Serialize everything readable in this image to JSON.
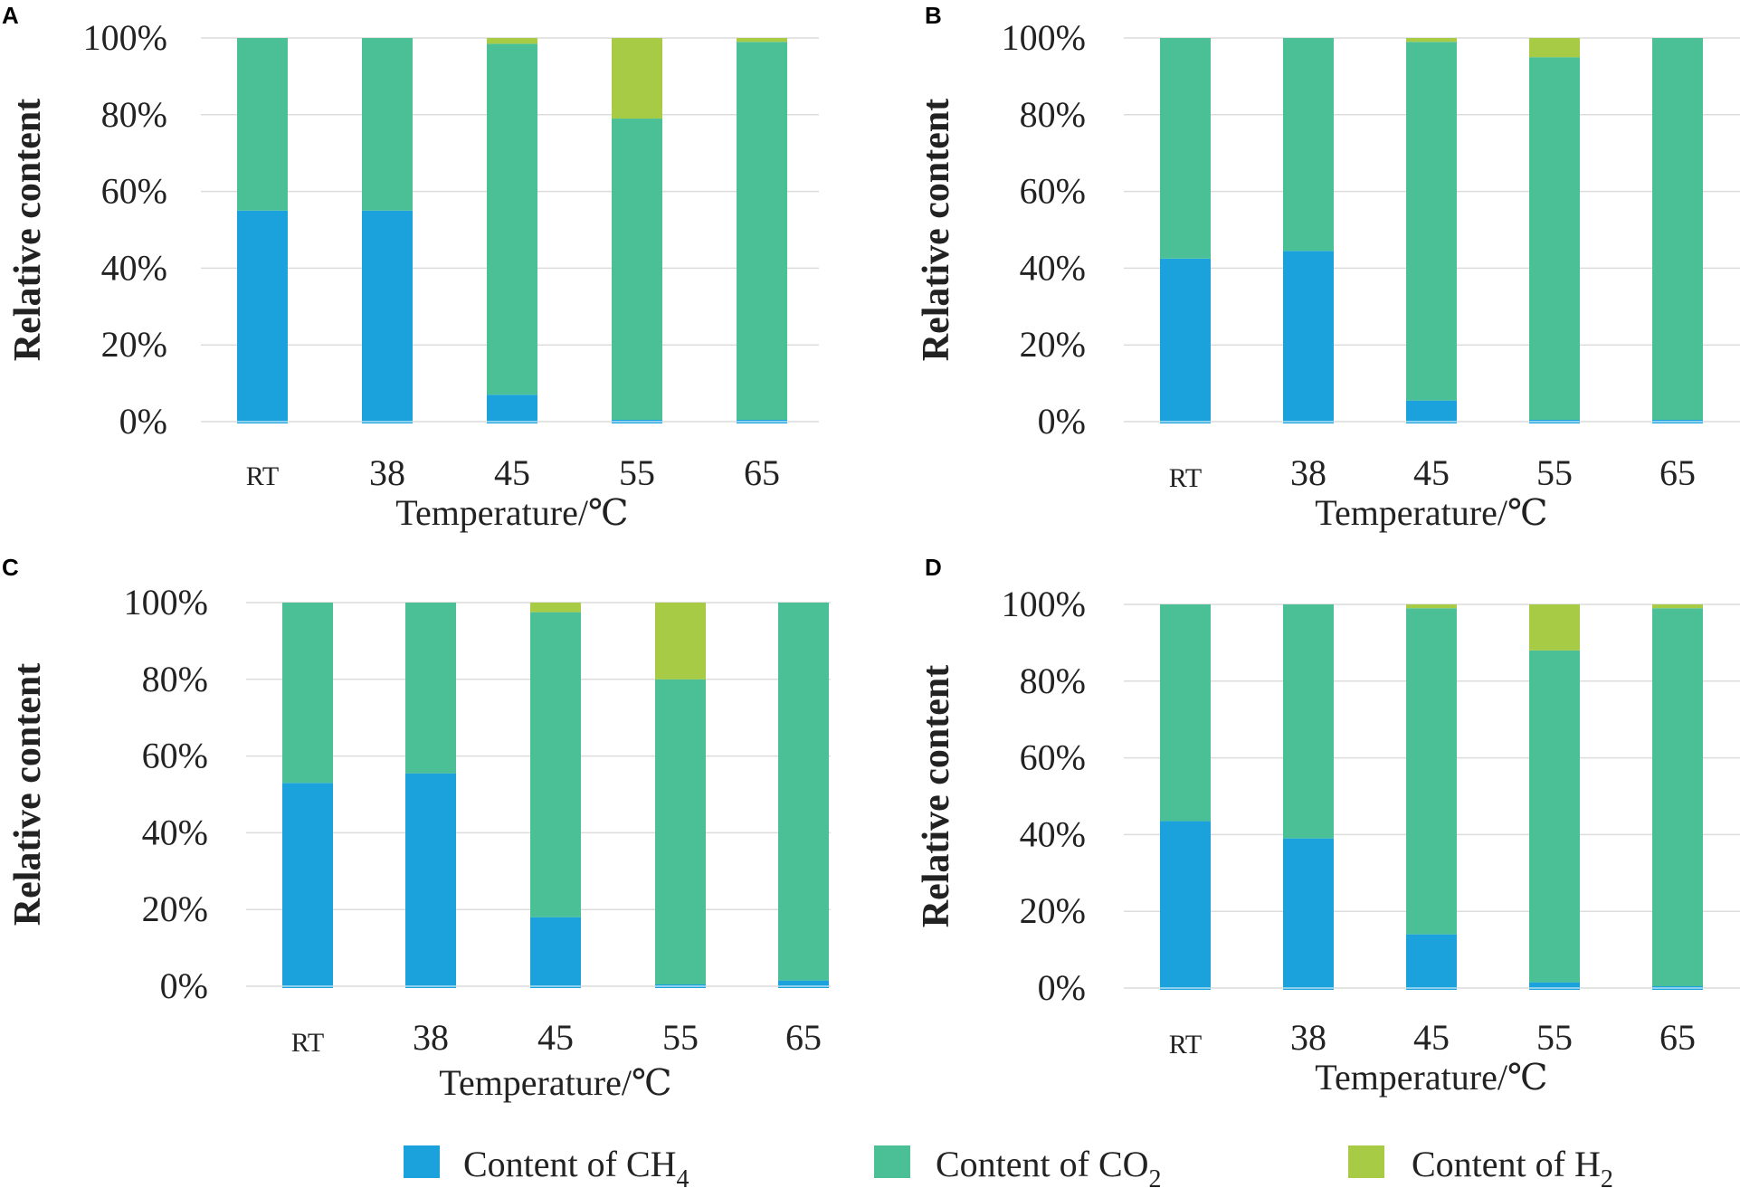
{
  "colors": {
    "ch4": "#1ba1dc",
    "co2": "#4bbf96",
    "h2": "#a8cb46"
  },
  "legend": [
    {
      "key": "ch4",
      "label": "Content of CH",
      "sub": "4"
    },
    {
      "key": "co2",
      "label": "Content of CO",
      "sub": "2"
    },
    {
      "key": "h2",
      "label": "Content of H",
      "sub": "2"
    }
  ],
  "chart_data": [
    {
      "panel": "A",
      "type": "bar",
      "stacked": true,
      "categories": [
        "RT",
        "38",
        "45",
        "55",
        "65"
      ],
      "xlabel": "Temperature/℃",
      "ylabel": "Relative content",
      "yticks": [
        "0%",
        "20%",
        "40%",
        "60%",
        "80%",
        "100%"
      ],
      "ylim": [
        0,
        100
      ],
      "series": [
        {
          "name": "Content of CH4",
          "key": "ch4",
          "values": [
            55,
            55,
            7,
            0,
            0
          ]
        },
        {
          "name": "Content of CO2",
          "key": "co2",
          "values": [
            45,
            45,
            91.5,
            79,
            99
          ]
        },
        {
          "name": "Content of H2",
          "key": "h2",
          "values": [
            0,
            0,
            1.5,
            21,
            1
          ]
        }
      ]
    },
    {
      "panel": "B",
      "type": "bar",
      "stacked": true,
      "categories": [
        "RT",
        "38",
        "45",
        "55",
        "65"
      ],
      "xlabel": "Temperature/℃",
      "ylabel": "Relative content",
      "yticks": [
        "0%",
        "20%",
        "40%",
        "60%",
        "80%",
        "100%"
      ],
      "ylim": [
        0,
        100
      ],
      "series": [
        {
          "name": "Content of CH4",
          "key": "ch4",
          "values": [
            42.5,
            44.5,
            5.5,
            0,
            0
          ]
        },
        {
          "name": "Content of CO2",
          "key": "co2",
          "values": [
            57.5,
            55.5,
            93.5,
            95,
            100
          ]
        },
        {
          "name": "Content of H2",
          "key": "h2",
          "values": [
            0,
            0,
            1,
            5,
            0
          ]
        }
      ]
    },
    {
      "panel": "C",
      "type": "bar",
      "stacked": true,
      "categories": [
        "RT",
        "38",
        "45",
        "55",
        "65"
      ],
      "xlabel": "Temperature/℃",
      "ylabel": "Relative content",
      "yticks": [
        "0%",
        "20%",
        "40%",
        "60%",
        "80%",
        "100%"
      ],
      "ylim": [
        0,
        100
      ],
      "series": [
        {
          "name": "Content of CH4",
          "key": "ch4",
          "values": [
            53,
            55.5,
            18,
            0,
            1.5
          ]
        },
        {
          "name": "Content of CO2",
          "key": "co2",
          "values": [
            47,
            44.5,
            79.5,
            80,
            98.5
          ]
        },
        {
          "name": "Content of H2",
          "key": "h2",
          "values": [
            0,
            0,
            2.5,
            20,
            0
          ]
        }
      ]
    },
    {
      "panel": "D",
      "type": "bar",
      "stacked": true,
      "categories": [
        "RT",
        "38",
        "45",
        "55",
        "65"
      ],
      "xlabel": "Temperature/℃",
      "ylabel": "Relative content",
      "yticks": [
        "0%",
        "20%",
        "40%",
        "60%",
        "80%",
        "100%"
      ],
      "ylim": [
        0,
        100
      ],
      "series": [
        {
          "name": "Content of CH4",
          "key": "ch4",
          "values": [
            43.5,
            39,
            14,
            1.5,
            0
          ]
        },
        {
          "name": "Content of CO2",
          "key": "co2",
          "values": [
            56.5,
            61,
            85,
            86.5,
            99
          ]
        },
        {
          "name": "Content of H2",
          "key": "h2",
          "values": [
            0,
            0,
            1,
            12,
            1
          ]
        }
      ]
    }
  ]
}
